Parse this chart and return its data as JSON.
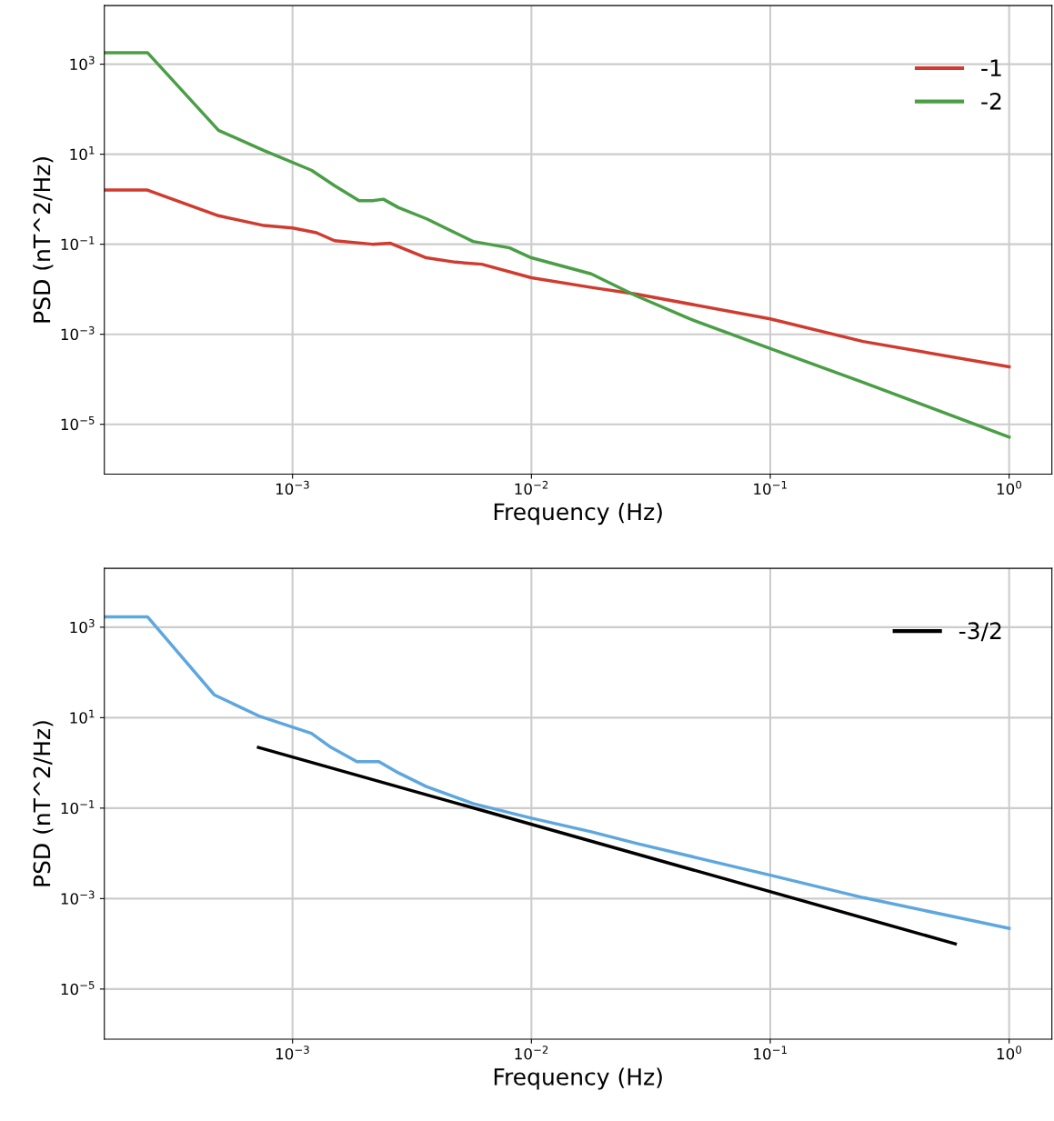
{
  "chart_data": [
    {
      "type": "line",
      "xlabel": "Frequency (Hz)",
      "ylabel": "PSD (nT^2/Hz)",
      "log": "xy",
      "grid": true,
      "legend": "top right",
      "xlim": [
        0.000163,
        1.51
      ],
      "ylim": [
        7.8e-07,
        20000
      ],
      "xticks": [
        {
          "value": 0.001,
          "label": "10$^{−3}$"
        },
        {
          "value": 0.01,
          "label": "10$^{−2}$"
        },
        {
          "value": 0.1,
          "label": "10$^{−1}$"
        },
        {
          "value": 1,
          "label": "10$^{0}$"
        }
      ],
      "yticks": [
        {
          "value": 1000,
          "label": "10$^{3}$"
        },
        {
          "value": 10,
          "label": "10$^{1}$"
        },
        {
          "value": 0.1,
          "label": "10$^{−1}$"
        },
        {
          "value": 0.001,
          "label": "10$^{−3}$"
        },
        {
          "value": 1e-05,
          "label": "10$^{−5}$"
        }
      ],
      "series": [
        {
          "name": "-1",
          "color": "#d03b2f",
          "x": [
            0.000163,
            0.000247,
            0.00049,
            0.00076,
            0.001,
            0.00126,
            0.0015,
            0.00216,
            0.00257,
            0.00363,
            0.0048,
            0.0062,
            0.01,
            0.0178,
            0.0275,
            0.1,
            0.245,
            1
          ],
          "values": [
            1.6,
            1.6,
            0.43,
            0.26,
            0.23,
            0.18,
            0.12,
            0.1,
            0.105,
            0.05,
            0.04,
            0.036,
            0.018,
            0.011,
            0.0078,
            0.0022,
            0.00069,
            0.00019
          ]
        },
        {
          "name": "-2",
          "color": "#4a9e45",
          "x": [
            0.000163,
            0.000247,
            0.00049,
            0.00076,
            0.0012,
            0.0015,
            0.0019,
            0.00216,
            0.0024,
            0.00278,
            0.00363,
            0.0057,
            0.0081,
            0.01,
            0.0178,
            0.0275,
            0.046,
            0.1,
            0.245,
            1
          ],
          "values": [
            1800,
            1800,
            34,
            12,
            4.4,
            2.0,
            0.93,
            0.93,
            1.0,
            0.65,
            0.37,
            0.115,
            0.083,
            0.05,
            0.022,
            0.0071,
            0.0022,
            0.00048,
            8.5e-05,
            5.2e-06
          ]
        }
      ]
    },
    {
      "type": "line",
      "xlabel": "Frequency (Hz)",
      "ylabel": "PSD (nT^2/Hz)",
      "log": "xy",
      "grid": true,
      "legend": "top right",
      "xlim": [
        0.000163,
        1.51
      ],
      "ylim": [
        7.8e-07,
        20000
      ],
      "xticks": [
        {
          "value": 0.001,
          "label": "10$^{−3}$"
        },
        {
          "value": 0.01,
          "label": "10$^{−2}$"
        },
        {
          "value": 0.1,
          "label": "10$^{−1}$"
        },
        {
          "value": 1,
          "label": "10$^{0}$"
        }
      ],
      "yticks": [
        {
          "value": 1000,
          "label": "10$^{3}$"
        },
        {
          "value": 10,
          "label": "10$^{1}$"
        },
        {
          "value": 0.1,
          "label": "10$^{−1}$"
        },
        {
          "value": 0.001,
          "label": "10$^{−3}$"
        },
        {
          "value": 1e-05,
          "label": "10$^{−5}$"
        }
      ],
      "series": [
        {
          "color": "#5ea7de",
          "x": [
            0.000163,
            0.000247,
            0.00047,
            0.00072,
            0.0012,
            0.00145,
            0.00186,
            0.0023,
            0.00278,
            0.00363,
            0.0057,
            0.01,
            0.0178,
            0.0275,
            0.1,
            0.245,
            1
          ],
          "values": [
            1700,
            1700,
            32,
            11,
            4.5,
            2.2,
            1.07,
            1.07,
            0.6,
            0.3,
            0.126,
            0.06,
            0.03,
            0.0166,
            0.0033,
            0.00105,
            0.00022
          ]
        },
        {
          "name": "-3/2",
          "color": "#000000",
          "x": [
            0.00072,
            0.595
          ],
          "values": [
            2.2,
            0.0001
          ]
        }
      ]
    }
  ]
}
